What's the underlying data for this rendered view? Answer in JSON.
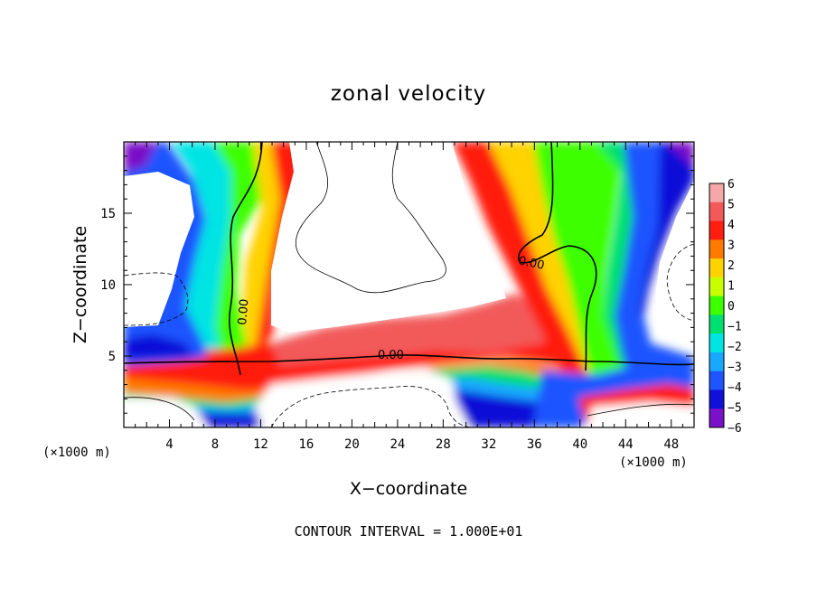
{
  "chart_data": {
    "type": "heatmap",
    "title": "zonal velocity",
    "xlabel": "X−coordinate",
    "ylabel": "Z−coordinate",
    "x_unit_left": "(×1000 m)",
    "x_unit_right": "(×1000 m)",
    "xlim": [
      0,
      50
    ],
    "ylim": [
      0,
      20
    ],
    "x_ticks": [
      4,
      8,
      12,
      16,
      20,
      24,
      28,
      32,
      36,
      40,
      44,
      48
    ],
    "y_ticks": [
      5,
      10,
      15
    ],
    "colorbar": {
      "levels": [
        6,
        5,
        4,
        3,
        2,
        1,
        0,
        -1,
        -2,
        -3,
        -4,
        -5,
        -6
      ],
      "labels": [
        "6",
        "5",
        "4",
        "3",
        "2",
        "1",
        "0",
        "−1",
        "−2",
        "−3",
        "−4",
        "−5",
        "−6"
      ],
      "colors": [
        "#f4a8a8",
        "#f25a5a",
        "#ff1e10",
        "#ff7a00",
        "#ffd200",
        "#c8ff00",
        "#3cff00",
        "#00e070",
        "#00e4e4",
        "#19a8ff",
        "#1f55ff",
        "#1010d8",
        "#7a10c8"
      ]
    },
    "contour_labels": [
      "0.00",
      "0.00",
      "0.00"
    ],
    "annotation": "CONTOUR INTERVAL = 1.000E+01"
  }
}
